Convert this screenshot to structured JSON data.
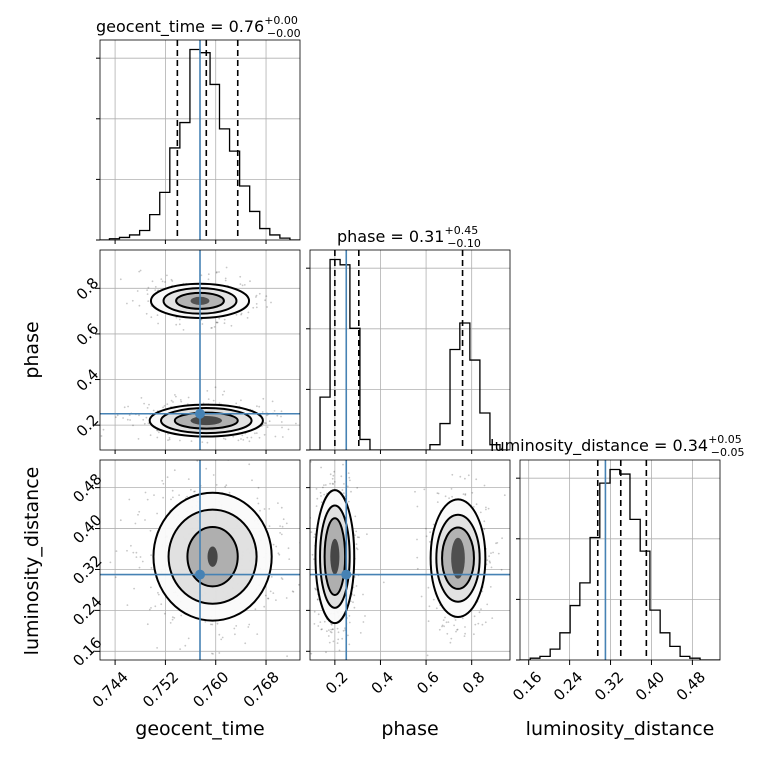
{
  "chart_data": {
    "type": "corner",
    "parameters": [
      "geocent_time",
      "phase",
      "luminosity_distance"
    ],
    "axis_labels": {
      "geocent_time": "geocent_time",
      "phase": "phase",
      "luminosity_distance": "luminosity_distance"
    },
    "tick_labels": {
      "geocent_time": [
        "0.744",
        "0.752",
        "0.760",
        "0.768"
      ],
      "phase": [
        "0.2",
        "0.4",
        "0.6",
        "0.8"
      ],
      "luminosity_distance": [
        "0.16",
        "0.24",
        "0.32",
        "0.40",
        "0.48"
      ]
    },
    "ticks": {
      "geocent_time": [
        0.744,
        0.752,
        0.76,
        0.768
      ],
      "phase": [
        0.2,
        0.4,
        0.6,
        0.8
      ],
      "luminosity_distance": [
        0.16,
        0.24,
        0.32,
        0.4,
        0.48
      ]
    },
    "ranges": {
      "geocent_time": [
        0.7416,
        0.7734
      ],
      "phase": [
        0.091,
        0.968
      ],
      "luminosity_distance": [
        0.143,
        0.534
      ]
    },
    "truths": {
      "geocent_time": 0.7575,
      "phase": 0.25,
      "luminosity_distance": 0.31
    },
    "titles": [
      {
        "parameter": "geocent_time",
        "prefix": "geocent_time = 0.76",
        "upper": "+0.00",
        "lower": "−0.00"
      },
      {
        "parameter": "phase",
        "prefix": "phase = 0.31",
        "upper": "+0.45",
        "lower": "−0.10"
      },
      {
        "parameter": "luminosity_distance",
        "prefix": "luminosity_distance = 0.34",
        "upper": "+0.05",
        "lower": "−0.05"
      }
    ],
    "quantiles": {
      "geocent_time": [
        0.7539,
        0.7585,
        0.7635
      ],
      "phase": [
        0.2,
        0.305,
        0.76
      ],
      "luminosity_distance": [
        0.295,
        0.34,
        0.39
      ]
    },
    "histograms": {
      "geocent_time": {
        "bin_edges": [
          0.7416,
          0.7431,
          0.7447,
          0.7463,
          0.7479,
          0.7495,
          0.7511,
          0.7527,
          0.7543,
          0.7559,
          0.7575,
          0.7591,
          0.7606,
          0.7622,
          0.7638,
          0.7654,
          0.767,
          0.7686,
          0.7702,
          0.7718,
          0.7734
        ],
        "counts": [
          0,
          2,
          4,
          8,
          15,
          40,
          75,
          145,
          185,
          300,
          295,
          245,
          175,
          140,
          85,
          45,
          18,
          8,
          3,
          0
        ]
      },
      "phase": {
        "bin_edges": [
          0.091,
          0.135,
          0.179,
          0.223,
          0.266,
          0.31,
          0.354,
          0.398,
          0.442,
          0.485,
          0.529,
          0.573,
          0.617,
          0.661,
          0.705,
          0.748,
          0.792,
          0.836,
          0.88,
          0.924,
          0.968
        ],
        "counts": [
          0,
          50,
          180,
          175,
          115,
          10,
          0,
          0,
          0,
          0,
          0,
          0,
          5,
          25,
          95,
          120,
          85,
          35,
          5,
          0
        ]
      },
      "luminosity_distance": {
        "bin_edges": [
          0.143,
          0.163,
          0.182,
          0.202,
          0.221,
          0.241,
          0.26,
          0.28,
          0.299,
          0.319,
          0.338,
          0.358,
          0.378,
          0.397,
          0.417,
          0.436,
          0.456,
          0.475,
          0.495,
          0.514,
          0.534
        ],
        "counts": [
          0,
          2,
          4,
          12,
          30,
          60,
          85,
          135,
          195,
          210,
          205,
          155,
          120,
          55,
          30,
          15,
          4,
          2,
          0,
          0
        ]
      }
    },
    "contours_2d": [
      {
        "x": "geocent_time",
        "y": "phase",
        "modes": [
          {
            "center": [
              0.7575,
              0.745
            ],
            "radii_x": [
              0.0015,
              0.0038,
              0.0058,
              0.0078
            ],
            "radii_y": [
              0.018,
              0.035,
              0.056,
              0.075
            ],
            "density": 0.6
          },
          {
            "center": [
              0.7585,
              0.22
            ],
            "radii_x": [
              0.0025,
              0.005,
              0.0072,
              0.009
            ],
            "radii_y": [
              0.02,
              0.035,
              0.055,
              0.07
            ],
            "density": 0.9
          }
        ]
      },
      {
        "x": "geocent_time",
        "y": "luminosity_distance",
        "modes": [
          {
            "center": [
              0.7595,
              0.345
            ],
            "radii_x": [
              0.0008,
              0.004,
              0.007,
              0.0094
            ],
            "radii_y": [
              0.02,
              0.058,
              0.092,
              0.125
            ],
            "density": 1.0
          }
        ]
      },
      {
        "x": "phase",
        "y": "luminosity_distance",
        "modes": [
          {
            "center": [
              0.2,
              0.345
            ],
            "radii_x": [
              0.02,
              0.045,
              0.065,
              0.085
            ],
            "radii_y": [
              0.035,
              0.075,
              0.1,
              0.13
            ],
            "density": 1.0
          },
          {
            "center": [
              0.74,
              0.342
            ],
            "radii_x": [
              0.03,
              0.07,
              0.095,
              0.12
            ],
            "radii_y": [
              0.04,
              0.06,
              0.085,
              0.115
            ],
            "density": 0.7
          }
        ]
      }
    ],
    "colors": {
      "truth": "#4682b4",
      "hist": "#000000",
      "grid": "#b0b0b0",
      "quantile": "#000000"
    },
    "grid": true
  }
}
